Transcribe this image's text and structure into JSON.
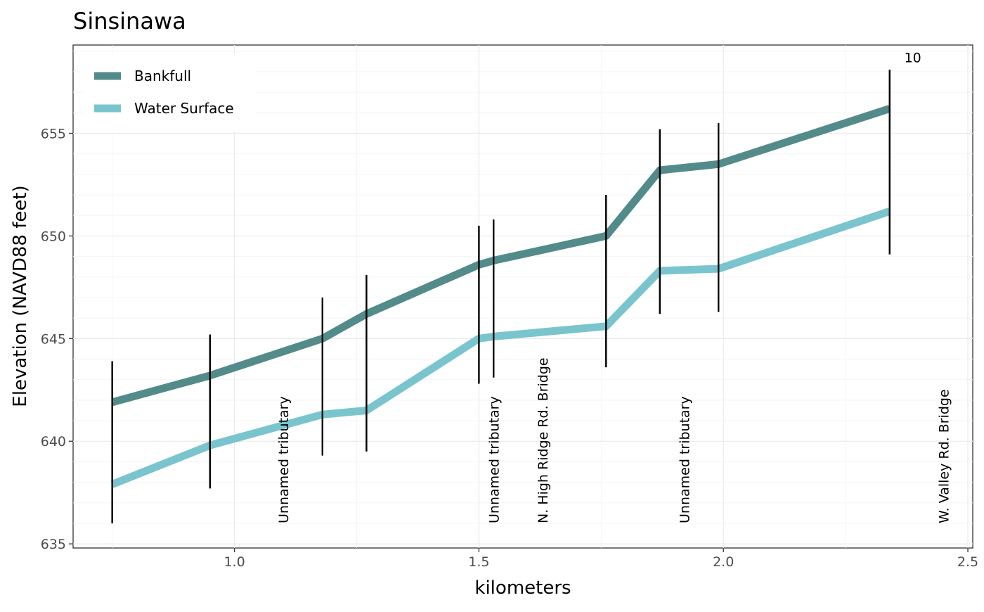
{
  "chart_data": {
    "type": "line",
    "title": "Sinsinawa",
    "xlabel": "kilometers",
    "ylabel": "Elevation (NAVD88 feet)",
    "xlim": [
      0.67,
      2.51
    ],
    "ylim": [
      634.8,
      659.3
    ],
    "x_ticks": [
      1.0,
      1.5,
      2.0,
      2.5
    ],
    "x_tick_labels": [
      "1.0",
      "1.5",
      "2.0",
      "2.5"
    ],
    "y_ticks": [
      635,
      640,
      645,
      650,
      655
    ],
    "y_tick_labels": [
      "635",
      "640",
      "645",
      "650",
      "655"
    ],
    "grid": true,
    "legend_position": "top-left",
    "x": [
      0.75,
      0.95,
      1.18,
      1.27,
      1.5,
      1.53,
      1.76,
      1.87,
      1.99,
      2.34
    ],
    "series": [
      {
        "name": "Bankfull",
        "color": "#538b8b",
        "values": [
          641.9,
          643.2,
          645.0,
          646.2,
          648.6,
          648.8,
          650.0,
          653.2,
          653.5,
          656.2
        ]
      },
      {
        "name": "Water Surface",
        "color": "#7ac5cd",
        "values": [
          637.9,
          639.8,
          641.3,
          641.5,
          645.0,
          645.1,
          645.6,
          648.3,
          648.4,
          651.2
        ]
      }
    ],
    "error_bars": [
      {
        "x": 0.75,
        "low": 636.0,
        "high": 643.9
      },
      {
        "x": 0.95,
        "low": 637.7,
        "high": 645.2
      },
      {
        "x": 1.18,
        "low": 639.3,
        "high": 647.0
      },
      {
        "x": 1.27,
        "low": 639.5,
        "high": 648.1
      },
      {
        "x": 1.5,
        "low": 642.8,
        "high": 650.5
      },
      {
        "x": 1.53,
        "low": 643.1,
        "high": 650.8
      },
      {
        "x": 1.76,
        "low": 643.6,
        "high": 652.0
      },
      {
        "x": 1.87,
        "low": 646.2,
        "high": 655.2
      },
      {
        "x": 1.99,
        "low": 646.3,
        "high": 655.5
      },
      {
        "x": 2.34,
        "low": 649.1,
        "high": 658.1
      }
    ],
    "annotations": [
      {
        "text": "Unnamed tributary",
        "x": 1.1,
        "y": 636.0
      },
      {
        "text": "Unnamed tributary",
        "x": 1.53,
        "y": 636.0
      },
      {
        "text": "N. High Ridge Rd. Bridge",
        "x": 1.63,
        "y": 636.0
      },
      {
        "text": "Unnamed tributary",
        "x": 1.92,
        "y": 636.0
      },
      {
        "text": "W. Valley Rd. Bridge",
        "x": 2.45,
        "y": 636.0
      }
    ],
    "top_label": {
      "text": "10",
      "x": 2.37,
      "y": 658.7
    }
  }
}
